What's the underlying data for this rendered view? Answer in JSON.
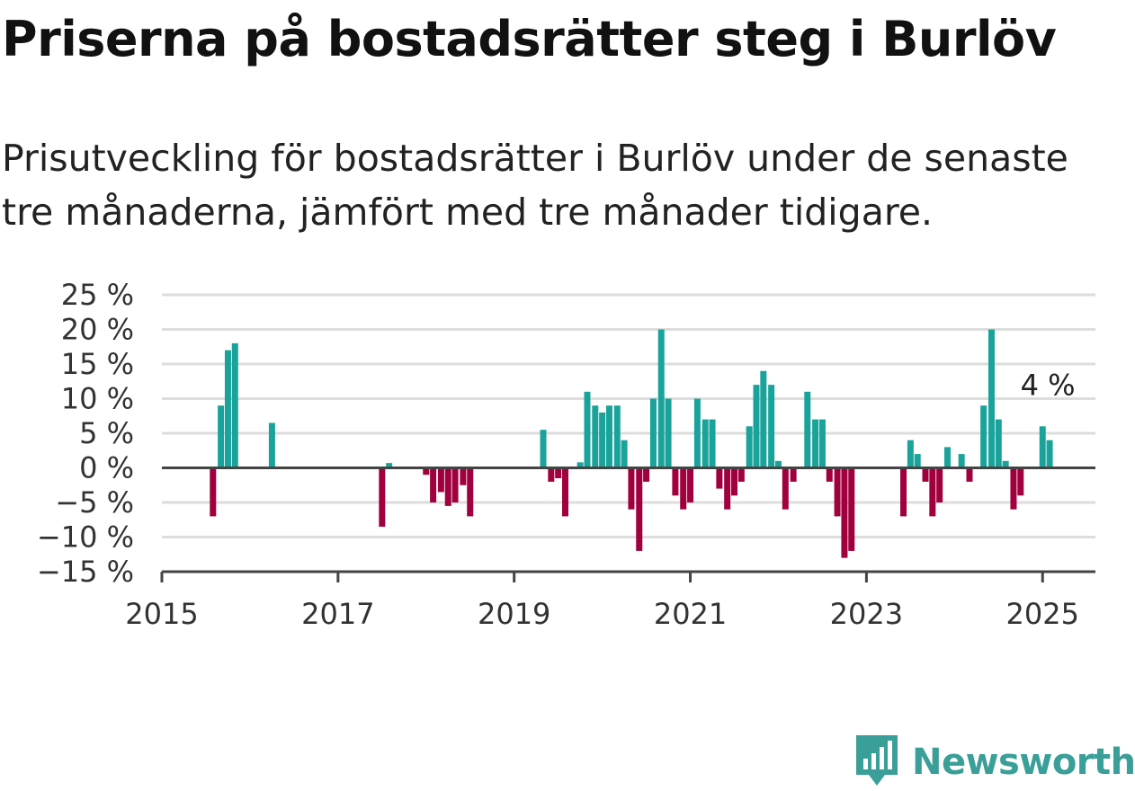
{
  "title": "Priserna på bostadsrätter steg i Burlöv",
  "subtitle": "Prisutveckling för bostadsrätter i Burlöv under de senaste tre månaderna, jämfört med tre månader tidigare.",
  "brand": "Newsworthy",
  "colors": {
    "positive": "#1aa39a",
    "negative": "#a0003e",
    "grid": "#dddddd",
    "axis": "#444444",
    "brand": "#3a9f98"
  },
  "chart_data": {
    "type": "bar",
    "x_axis": {
      "min": 2015.0,
      "max": 2025.6,
      "ticks": [
        2015,
        2017,
        2019,
        2021,
        2023,
        2025
      ]
    },
    "y_axis": {
      "min": -15,
      "max": 25,
      "ticks": [
        25,
        20,
        15,
        10,
        5,
        0,
        -5,
        -10,
        -15
      ],
      "tick_labels": [
        "25 %",
        "20 %",
        "15 %",
        "10 %",
        "5 %",
        "0 %",
        "−5 %",
        "−10 %",
        "−15 %"
      ]
    },
    "grid": true,
    "annotation": {
      "text": "4 %",
      "x": 2025.08,
      "y": 4
    },
    "bars": [
      {
        "x": 2015.58,
        "y": -7
      },
      {
        "x": 2015.67,
        "y": 9
      },
      {
        "x": 2015.75,
        "y": 17
      },
      {
        "x": 2015.83,
        "y": 18
      },
      {
        "x": 2016.25,
        "y": 6.5
      },
      {
        "x": 2017.5,
        "y": -8.5
      },
      {
        "x": 2017.58,
        "y": 0.7
      },
      {
        "x": 2018.0,
        "y": -1
      },
      {
        "x": 2018.08,
        "y": -5
      },
      {
        "x": 2018.17,
        "y": -3.5
      },
      {
        "x": 2018.25,
        "y": -5.5
      },
      {
        "x": 2018.33,
        "y": -5
      },
      {
        "x": 2018.42,
        "y": -2.5
      },
      {
        "x": 2018.5,
        "y": -7
      },
      {
        "x": 2019.33,
        "y": 5.5
      },
      {
        "x": 2019.42,
        "y": -2
      },
      {
        "x": 2019.5,
        "y": -1.5
      },
      {
        "x": 2019.58,
        "y": -7
      },
      {
        "x": 2019.75,
        "y": 0.8
      },
      {
        "x": 2019.83,
        "y": 11
      },
      {
        "x": 2019.92,
        "y": 9
      },
      {
        "x": 2020.0,
        "y": 8
      },
      {
        "x": 2020.08,
        "y": 9
      },
      {
        "x": 2020.17,
        "y": 9
      },
      {
        "x": 2020.25,
        "y": 4
      },
      {
        "x": 2020.33,
        "y": -6
      },
      {
        "x": 2020.42,
        "y": -12
      },
      {
        "x": 2020.5,
        "y": -2
      },
      {
        "x": 2020.58,
        "y": 10
      },
      {
        "x": 2020.67,
        "y": 20
      },
      {
        "x": 2020.75,
        "y": 10
      },
      {
        "x": 2020.83,
        "y": -4
      },
      {
        "x": 2020.92,
        "y": -6
      },
      {
        "x": 2021.0,
        "y": -5
      },
      {
        "x": 2021.08,
        "y": 10
      },
      {
        "x": 2021.17,
        "y": 7
      },
      {
        "x": 2021.25,
        "y": 7
      },
      {
        "x": 2021.33,
        "y": -3
      },
      {
        "x": 2021.42,
        "y": -6
      },
      {
        "x": 2021.5,
        "y": -4
      },
      {
        "x": 2021.58,
        "y": -2
      },
      {
        "x": 2021.67,
        "y": 6
      },
      {
        "x": 2021.75,
        "y": 12
      },
      {
        "x": 2021.83,
        "y": 14
      },
      {
        "x": 2021.92,
        "y": 12
      },
      {
        "x": 2022.0,
        "y": 1
      },
      {
        "x": 2022.08,
        "y": -6
      },
      {
        "x": 2022.17,
        "y": -2
      },
      {
        "x": 2022.33,
        "y": 11
      },
      {
        "x": 2022.42,
        "y": 7
      },
      {
        "x": 2022.5,
        "y": 7
      },
      {
        "x": 2022.58,
        "y": -2
      },
      {
        "x": 2022.67,
        "y": -7
      },
      {
        "x": 2022.75,
        "y": -13
      },
      {
        "x": 2022.83,
        "y": -12
      },
      {
        "x": 2023.42,
        "y": -7
      },
      {
        "x": 2023.5,
        "y": 4
      },
      {
        "x": 2023.58,
        "y": 2
      },
      {
        "x": 2023.67,
        "y": -2
      },
      {
        "x": 2023.75,
        "y": -7
      },
      {
        "x": 2023.83,
        "y": -5
      },
      {
        "x": 2023.92,
        "y": 3
      },
      {
        "x": 2024.08,
        "y": 2
      },
      {
        "x": 2024.17,
        "y": -2
      },
      {
        "x": 2024.33,
        "y": 9
      },
      {
        "x": 2024.42,
        "y": 20
      },
      {
        "x": 2024.5,
        "y": 7
      },
      {
        "x": 2024.58,
        "y": 1
      },
      {
        "x": 2024.67,
        "y": -6
      },
      {
        "x": 2024.75,
        "y": -4
      },
      {
        "x": 2025.0,
        "y": 6
      },
      {
        "x": 2025.08,
        "y": 4
      }
    ]
  }
}
